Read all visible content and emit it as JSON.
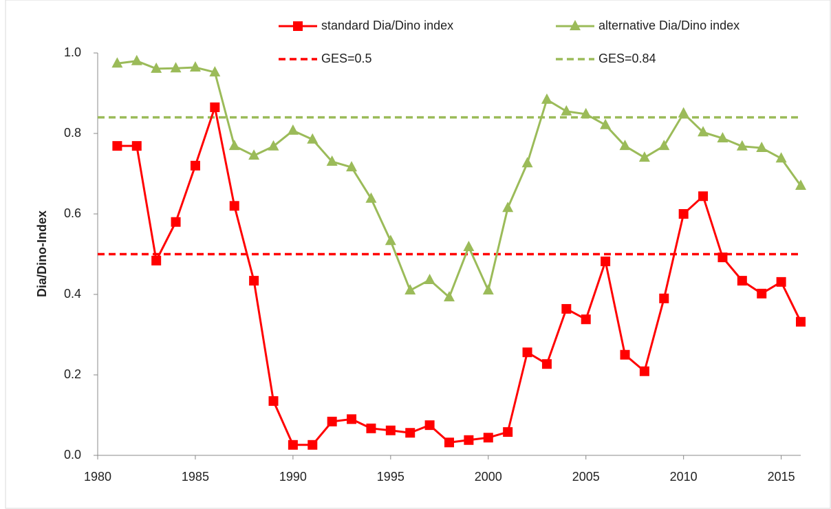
{
  "chart_data": {
    "type": "line",
    "y_label": "Dia/Dino-Index",
    "x": [
      1981,
      1982,
      1983,
      1984,
      1985,
      1986,
      1987,
      1988,
      1989,
      1990,
      1991,
      1992,
      1993,
      1994,
      1995,
      1996,
      1997,
      1998,
      1999,
      2000,
      2001,
      2002,
      2003,
      2004,
      2005,
      2006,
      2007,
      2008,
      2009,
      2010,
      2011,
      2012,
      2013,
      2014,
      2015,
      2016
    ],
    "series": [
      {
        "name": "standard Dia/Dino index",
        "color": "#ff0000",
        "marker": "square",
        "values": [
          0.769,
          0.769,
          0.484,
          0.58,
          0.72,
          0.865,
          0.62,
          0.434,
          0.135,
          0.026,
          0.026,
          0.084,
          0.09,
          0.067,
          0.062,
          0.056,
          0.075,
          0.032,
          0.038,
          0.044,
          0.058,
          0.256,
          0.227,
          0.364,
          0.338,
          0.482,
          0.25,
          0.209,
          0.39,
          0.6,
          0.644,
          0.492,
          0.434,
          0.402,
          0.431,
          0.332
        ]
      },
      {
        "name": "alternative Dia/Dino index",
        "color": "#9bbb59",
        "marker": "triangle",
        "values": [
          0.974,
          0.98,
          0.961,
          0.962,
          0.964,
          0.952,
          0.769,
          0.745,
          0.768,
          0.807,
          0.785,
          0.73,
          0.716,
          0.638,
          0.533,
          0.41,
          0.436,
          0.393,
          0.518,
          0.41,
          0.615,
          0.726,
          0.884,
          0.855,
          0.848,
          0.821,
          0.769,
          0.74,
          0.769,
          0.85,
          0.803,
          0.788,
          0.768,
          0.764,
          0.738,
          0.67
        ]
      }
    ],
    "reference_lines": [
      {
        "name": "GES=0.5",
        "value": 0.5,
        "color": "#ff0000"
      },
      {
        "name": "GES=0.84",
        "value": 0.84,
        "color": "#9bbb59"
      }
    ],
    "xlim": [
      1980,
      2016
    ],
    "xticks": [
      1980,
      1985,
      1990,
      1995,
      2000,
      2005,
      2010,
      2015
    ],
    "ylim": [
      0,
      1
    ],
    "yticks": [
      {
        "value": 0,
        "label": "0.0"
      },
      0.2,
      0.4,
      0.6,
      0.8,
      {
        "value": 1,
        "label": "1.0"
      }
    ],
    "grid": false
  }
}
